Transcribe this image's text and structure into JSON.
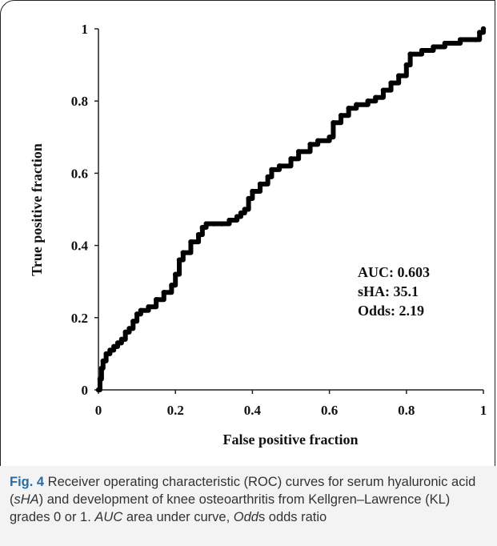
{
  "chart_data": {
    "type": "line",
    "xlabel": "False positive fraction",
    "ylabel": "True positive fraction",
    "xlim": [
      0,
      1
    ],
    "ylim": [
      0,
      1
    ],
    "xticks": [
      "0",
      "0.2",
      "0.4",
      "0.6",
      "0.8",
      "1"
    ],
    "yticks": [
      "0",
      "0.2",
      "0.4",
      "0.6",
      "0.8",
      "1"
    ],
    "grid": false,
    "annotations": [
      "AUC: 0.603",
      "sHA: 35.1",
      "Odds: 2.19"
    ],
    "series": [
      {
        "color": "#000000",
        "x": [
          0,
          0.004,
          0.008,
          0.012,
          0.02,
          0.03,
          0.04,
          0.05,
          0.06,
          0.07,
          0.08,
          0.09,
          0.1,
          0.11,
          0.13,
          0.15,
          0.17,
          0.19,
          0.2,
          0.21,
          0.22,
          0.24,
          0.26,
          0.27,
          0.28,
          0.3,
          0.32,
          0.34,
          0.36,
          0.37,
          0.38,
          0.39,
          0.4,
          0.42,
          0.44,
          0.45,
          0.47,
          0.5,
          0.52,
          0.55,
          0.57,
          0.6,
          0.61,
          0.63,
          0.65,
          0.67,
          0.7,
          0.72,
          0.74,
          0.76,
          0.78,
          0.8,
          0.81,
          0.84,
          0.87,
          0.9,
          0.94,
          0.98,
          0.99,
          1.0
        ],
        "y": [
          0,
          0.03,
          0.06,
          0.08,
          0.1,
          0.11,
          0.12,
          0.13,
          0.14,
          0.16,
          0.17,
          0.19,
          0.21,
          0.22,
          0.23,
          0.25,
          0.27,
          0.29,
          0.32,
          0.36,
          0.38,
          0.41,
          0.43,
          0.45,
          0.46,
          0.46,
          0.46,
          0.47,
          0.48,
          0.49,
          0.5,
          0.53,
          0.55,
          0.57,
          0.59,
          0.61,
          0.62,
          0.64,
          0.66,
          0.68,
          0.69,
          0.7,
          0.74,
          0.76,
          0.78,
          0.79,
          0.8,
          0.81,
          0.83,
          0.85,
          0.87,
          0.9,
          0.93,
          0.94,
          0.95,
          0.96,
          0.97,
          0.97,
          0.99,
          1.0
        ]
      }
    ]
  },
  "caption": {
    "label": "Fig. 4",
    "t1": " Receiver operating characteristic (ROC) curves for serum hyaluronic acid (",
    "i1": "sHA",
    "t2": ") and development of knee osteoarthritis from Kellgren–Lawrence (KL) grades 0 or 1. ",
    "i2": "AUC",
    "t3": " area under curve, ",
    "i3": "Odd",
    "t4": "s odds ratio"
  }
}
